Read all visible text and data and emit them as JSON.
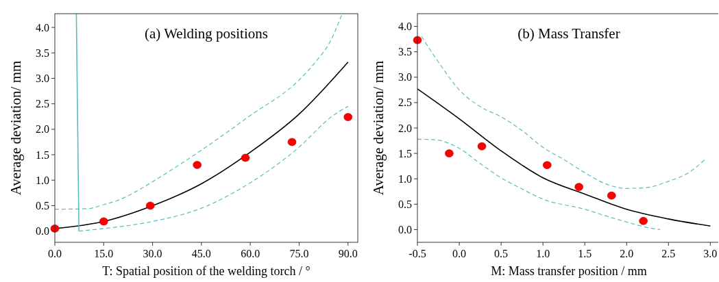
{
  "chart_data": [
    {
      "type": "scatter",
      "title": "(a) Welding positions",
      "xlabel": "T: Spatial position of the welding torch / °",
      "ylabel": "Average deviation/ mm",
      "xlim": [
        0,
        93
      ],
      "ylim": [
        -0.22,
        4.27
      ],
      "xticks": [
        {
          "value": 0,
          "label": "0.0"
        },
        {
          "value": 15,
          "label": "15.0"
        },
        {
          "value": 30,
          "label": "30.0"
        },
        {
          "value": 45,
          "label": "45.0"
        },
        {
          "value": 60,
          "label": "60.0"
        },
        {
          "value": 75,
          "label": "75.0"
        },
        {
          "value": 90,
          "label": "90.0"
        }
      ],
      "yticks": [
        {
          "value": 0,
          "label": "0.0"
        },
        {
          "value": 0.5,
          "label": "0.5"
        },
        {
          "value": 1,
          "label": "1.0"
        },
        {
          "value": 1.5,
          "label": "1.5"
        },
        {
          "value": 2,
          "label": "2.0"
        },
        {
          "value": 2.5,
          "label": "2.5"
        },
        {
          "value": 3,
          "label": "3.0"
        },
        {
          "value": 3.5,
          "label": "3.5"
        },
        {
          "value": 4,
          "label": "4.0"
        }
      ],
      "series": [
        {
          "type": "line",
          "color": "#000000",
          "line_style": "solid",
          "x": [
            0,
            15,
            30,
            45,
            60,
            75,
            90
          ],
          "values": [
            0.05,
            0.19,
            0.5,
            0.93,
            1.55,
            2.3,
            3.32
          ]
        },
        {
          "type": "line",
          "color": "#5bbcc0",
          "line_style": "dashed",
          "x": [
            0,
            10,
            15,
            20,
            25,
            30,
            45,
            60,
            75,
            80,
            85,
            88
          ],
          "values": [
            0.43,
            0.44,
            0.52,
            0.62,
            0.78,
            0.97,
            1.59,
            2.27,
            2.97,
            3.32,
            3.78,
            4.24
          ]
        },
        {
          "type": "line",
          "color": "#5bbcc0",
          "line_style": "dashed",
          "x": [
            7.4,
            15,
            30,
            45,
            60,
            75,
            85,
            90
          ],
          "values": [
            0,
            0.05,
            0.19,
            0.45,
            0.95,
            1.65,
            2.25,
            2.45
          ]
        },
        {
          "type": "line",
          "color": "#5bbcc0",
          "line_style": "solid",
          "x": [
            6.6,
            7.4
          ],
          "values": [
            4.27,
            0
          ]
        },
        {
          "color": "#ff0000",
          "marker": "circle",
          "x": [
            0,
            15,
            29.3,
            43.7,
            58.5,
            72.8,
            90
          ],
          "values": [
            0.05,
            0.19,
            0.5,
            1.3,
            1.44,
            1.75,
            2.24
          ]
        }
      ]
    },
    {
      "type": "scatter",
      "title": "(b) Mass Transfer",
      "xlabel": "M: Mass transfer position / mm",
      "ylabel": "Average deviation/ mm",
      "xlim": [
        -0.5,
        3.12
      ],
      "ylim": [
        -0.25,
        4.25
      ],
      "xticks": [
        -0.5,
        {
          "value": 0,
          "label": "0.0"
        },
        0.5,
        {
          "value": 1,
          "label": "1.0"
        },
        1.5,
        {
          "value": 2,
          "label": "2.0"
        },
        2.5,
        {
          "value": 3,
          "label": "3.0"
        }
      ],
      "yticks": [
        {
          "value": 0,
          "label": "0.0"
        },
        {
          "value": 0.5,
          "label": "0.5"
        },
        {
          "value": 1,
          "label": "1.0"
        },
        {
          "value": 1.5,
          "label": "1.5"
        },
        {
          "value": 2,
          "label": "2.0"
        },
        {
          "value": 2.5,
          "label": "2.5"
        },
        {
          "value": 3,
          "label": "3.0"
        },
        {
          "value": 3.5,
          "label": "3.5"
        },
        {
          "value": 4,
          "label": "4.0"
        }
      ],
      "series": [
        {
          "type": "line",
          "color": "#000000",
          "line_style": "solid",
          "x": [
            -0.5,
            0,
            0.5,
            1,
            1.5,
            2,
            2.5,
            3
          ],
          "values": [
            2.77,
            2.18,
            1.55,
            1.02,
            0.7,
            0.4,
            0.21,
            0.07
          ]
        },
        {
          "type": "line",
          "color": "#5bbcc0",
          "line_style": "dashed",
          "x": [
            -0.45,
            -0.25,
            0,
            0.25,
            0.5,
            0.75,
            1,
            1.25,
            1.5,
            1.75,
            2,
            2.25,
            2.5,
            2.75,
            2.95
          ],
          "values": [
            3.8,
            3.3,
            2.75,
            2.42,
            2.22,
            1.95,
            1.62,
            1.38,
            1.12,
            0.9,
            0.81,
            0.83,
            0.95,
            1.13,
            1.4
          ]
        },
        {
          "type": "line",
          "color": "#5bbcc0",
          "line_style": "dashed",
          "x": [
            -0.5,
            -0.3,
            0,
            0.25,
            0.5,
            0.75,
            1,
            1.5,
            1.75,
            2,
            2.25,
            2.4
          ],
          "values": [
            1.78,
            1.77,
            1.6,
            1.3,
            1.02,
            0.8,
            0.6,
            0.4,
            0.27,
            0.15,
            0.04,
            0
          ]
        },
        {
          "color": "#ff0000",
          "marker": "circle",
          "x": [
            -0.5,
            -0.12,
            0.27,
            1.05,
            1.43,
            1.82,
            2.2
          ],
          "values": [
            3.73,
            1.5,
            1.64,
            1.27,
            0.84,
            0.67,
            0.17
          ]
        }
      ]
    }
  ]
}
